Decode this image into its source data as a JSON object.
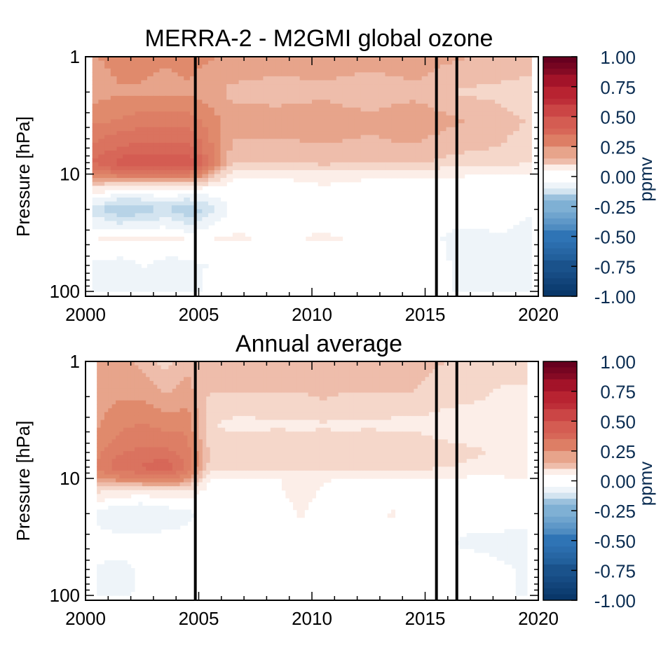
{
  "chart_data": [
    {
      "type": "heatmap",
      "title": "MERRA-2 - M2GMI global ozone",
      "xlabel": "",
      "ylabel": "Pressure [hPa]",
      "xlim": [
        2000,
        2020
      ],
      "ylim": [
        110,
        1
      ],
      "yscale": "log",
      "xticks": [
        2000,
        2005,
        2010,
        2015,
        2020
      ],
      "yticks": [
        1,
        10,
        100
      ],
      "events": [
        2004.85,
        2015.5,
        2016.4
      ],
      "colorbar": {
        "label": "ppmv",
        "ticks": [
          "1.00",
          "0.75",
          "0.50",
          "0.25",
          "0.00",
          "-0.25",
          "-0.50",
          "-0.75",
          "-1.00"
        ],
        "range": [
          -1,
          1
        ]
      },
      "x": [
        2000.3,
        2001.5,
        2002.5,
        2003.5,
        2004.6,
        2006.5,
        2008.5,
        2010.5,
        2012.5,
        2014.5,
        2016.5,
        2018.5,
        2019.7
      ],
      "y": [
        1,
        2,
        3.5,
        6,
        8,
        10,
        13,
        20,
        35,
        60,
        100
      ],
      "z": [
        [
          0.22,
          0.24,
          0.24,
          0.23,
          0.24,
          0.22,
          0.2,
          0.21,
          0.2,
          0.21,
          0.18,
          0.16,
          0.15
        ],
        [
          0.2,
          0.22,
          0.22,
          0.21,
          0.22,
          0.16,
          0.15,
          0.16,
          0.14,
          0.16,
          0.12,
          0.11,
          0.1
        ],
        [
          0.26,
          0.28,
          0.3,
          0.3,
          0.3,
          0.2,
          0.2,
          0.21,
          0.19,
          0.21,
          0.18,
          0.14,
          0.12
        ],
        [
          0.34,
          0.38,
          0.4,
          0.4,
          0.4,
          0.16,
          0.16,
          0.17,
          0.16,
          0.17,
          0.14,
          0.12,
          0.1
        ],
        [
          0.38,
          0.45,
          0.48,
          0.47,
          0.48,
          0.12,
          0.12,
          0.14,
          0.12,
          0.13,
          0.1,
          0.09,
          0.08
        ],
        [
          0.28,
          0.32,
          0.34,
          0.33,
          0.32,
          0.04,
          0.03,
          0.05,
          0.04,
          0.04,
          0.03,
          0.02,
          0.02
        ],
        [
          0.08,
          0.04,
          0.03,
          0.05,
          0.04,
          0.0,
          0.0,
          0.02,
          0.0,
          0.0,
          0.0,
          0.0,
          0.0
        ],
        [
          -0.1,
          -0.18,
          -0.16,
          -0.12,
          -0.18,
          0.0,
          0.02,
          0.0,
          0.0,
          0.0,
          0.0,
          0.0,
          -0.02
        ],
        [
          0.02,
          0.04,
          0.03,
          0.04,
          0.02,
          0.03,
          0.02,
          0.03,
          0.02,
          0.0,
          -0.04,
          -0.03,
          -0.05
        ],
        [
          -0.03,
          -0.05,
          -0.02,
          -0.05,
          -0.04,
          0.0,
          0.0,
          0.0,
          0.0,
          0.0,
          -0.03,
          -0.04,
          -0.05
        ],
        [
          -0.06,
          -0.05,
          -0.04,
          -0.05,
          -0.04,
          0.02,
          0.02,
          0.0,
          0.02,
          0.0,
          -0.03,
          -0.04,
          -0.05
        ]
      ],
      "xticklabels": [
        "2000",
        "2005",
        "2010",
        "2015",
        "2020"
      ],
      "yticklabels": [
        "1",
        "10",
        "100"
      ]
    },
    {
      "type": "heatmap",
      "title": "Annual average",
      "xlabel": "",
      "ylabel": "Pressure [hPa]",
      "xlim": [
        2000,
        2020
      ],
      "ylim": [
        110,
        1
      ],
      "yscale": "log",
      "xticks": [
        2000,
        2005,
        2010,
        2015,
        2020
      ],
      "yticks": [
        1,
        10,
        100
      ],
      "events": [
        2004.85,
        2015.5,
        2016.4
      ],
      "colorbar": {
        "label": "ppmv",
        "ticks": [
          "1.00",
          "0.75",
          "0.50",
          "0.25",
          "0.00",
          "-0.25",
          "-0.50",
          "-0.75",
          "-1.00"
        ],
        "range": [
          -1,
          1
        ]
      },
      "x": [
        2000.5,
        2001.5,
        2002.5,
        2003.5,
        2004.5,
        2005.5,
        2006.5,
        2007.5,
        2008.5,
        2009.5,
        2010.5,
        2011.5,
        2012.5,
        2013.5,
        2014.5,
        2015.5,
        2016.5,
        2017.5,
        2018.5,
        2019.5
      ],
      "y": [
        1,
        2,
        3.5,
        6,
        8,
        10,
        13,
        20,
        35,
        60,
        100
      ],
      "z": [
        [
          0.18,
          0.2,
          0.16,
          0.1,
          0.16,
          0.15,
          0.16,
          0.15,
          0.16,
          0.15,
          0.16,
          0.15,
          0.16,
          0.15,
          0.15,
          0.13,
          0.12,
          0.11,
          0.1,
          0.1
        ],
        [
          0.2,
          0.22,
          0.22,
          0.18,
          0.2,
          0.12,
          0.12,
          0.12,
          0.12,
          0.12,
          0.13,
          0.12,
          0.12,
          0.12,
          0.12,
          0.1,
          0.09,
          0.08,
          0.06,
          0.06
        ],
        [
          0.22,
          0.26,
          0.28,
          0.26,
          0.26,
          0.08,
          0.06,
          0.06,
          0.07,
          0.06,
          0.07,
          0.06,
          0.07,
          0.06,
          0.06,
          0.05,
          0.04,
          0.04,
          0.03,
          0.03
        ],
        [
          0.26,
          0.32,
          0.34,
          0.34,
          0.3,
          0.12,
          0.11,
          0.11,
          0.12,
          0.12,
          0.12,
          0.11,
          0.12,
          0.12,
          0.12,
          0.1,
          0.09,
          0.08,
          0.06,
          0.06
        ],
        [
          0.28,
          0.36,
          0.38,
          0.42,
          0.32,
          0.1,
          0.09,
          0.09,
          0.1,
          0.1,
          0.1,
          0.09,
          0.1,
          0.1,
          0.1,
          0.08,
          0.07,
          0.06,
          0.05,
          0.05
        ],
        [
          0.22,
          0.26,
          0.28,
          0.3,
          0.24,
          0.02,
          0.02,
          0.02,
          0.02,
          0.04,
          0.03,
          0.02,
          0.02,
          0.02,
          0.02,
          0.02,
          0.02,
          0.01,
          0.02,
          0.02
        ],
        [
          0.08,
          0.06,
          0.04,
          0.06,
          0.06,
          0.0,
          0.0,
          0.0,
          0.02,
          0.04,
          0.02,
          0.0,
          0.0,
          0.0,
          0.02,
          0.0,
          0.0,
          0.0,
          0.02,
          0.0
        ],
        [
          -0.04,
          -0.08,
          -0.08,
          -0.06,
          -0.04,
          0.0,
          0.0,
          0.0,
          0.0,
          0.03,
          0.0,
          0.0,
          0.0,
          0.03,
          0.0,
          0.0,
          0.0,
          0.0,
          0.0,
          0.0
        ],
        [
          0.0,
          0.0,
          0.0,
          0.0,
          0.0,
          0.0,
          0.0,
          0.0,
          0.0,
          0.0,
          0.0,
          0.0,
          0.0,
          0.0,
          0.0,
          0.0,
          -0.03,
          -0.04,
          -0.04,
          -0.05
        ],
        [
          -0.03,
          -0.04,
          -0.02,
          -0.02,
          -0.02,
          0.0,
          0.0,
          0.0,
          0.0,
          0.0,
          0.0,
          0.0,
          0.0,
          0.0,
          0.0,
          0.0,
          0.0,
          0.0,
          -0.02,
          -0.03
        ],
        [
          -0.04,
          -0.03,
          -0.02,
          -0.02,
          -0.02,
          0.0,
          0.0,
          0.02,
          0.02,
          0.0,
          0.0,
          0.0,
          0.02,
          0.02,
          0.0,
          0.0,
          0.0,
          0.0,
          -0.02,
          -0.03
        ]
      ],
      "xticklabels": [
        "2000",
        "2005",
        "2010",
        "2015",
        "2020"
      ],
      "yticklabels": [
        "1",
        "10",
        "100"
      ]
    }
  ],
  "colors": {
    "positive_max": "#67001f",
    "positive_mid": "#e08a6c",
    "neutral": "#ffffff",
    "negative_mid": "#7fb0d4",
    "negative_max": "#053061",
    "colorbar_text": "#0b2d52",
    "axis": "#000000"
  }
}
